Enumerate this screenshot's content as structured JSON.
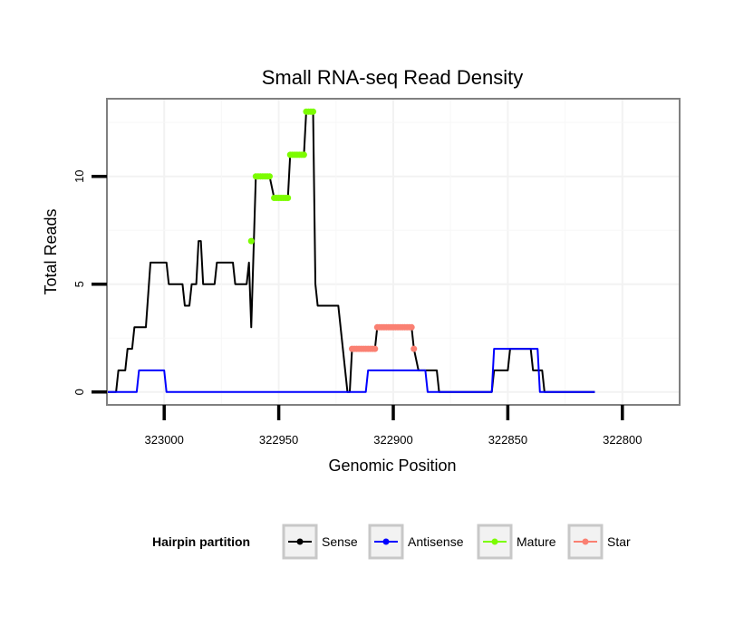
{
  "chart_data": {
    "type": "line",
    "title": "Small RNA-seq Read Density",
    "xlabel": "Genomic Position",
    "ylabel": "Total Reads",
    "xlim": [
      323025,
      322775
    ],
    "ylim": [
      -0.6,
      13.6
    ],
    "x_reversed": true,
    "grid": true,
    "legend_position": "bottom",
    "x_ticks": [
      323000,
      322950,
      322900,
      322850,
      322800
    ],
    "y_ticks": [
      0,
      5,
      10
    ],
    "legend": {
      "title": "Hairpin partition",
      "entries": [
        {
          "name": "Sense",
          "color": "#000000"
        },
        {
          "name": "Antisense",
          "color": "#0000ff"
        },
        {
          "name": "Mature",
          "color": "#7cfc00"
        },
        {
          "name": "Star",
          "color": "#fa8072"
        }
      ]
    },
    "series": [
      {
        "name": "Sense",
        "kind": "line",
        "color": "#000000",
        "points": [
          [
            323025,
            0
          ],
          [
            323021,
            0
          ],
          [
            323020,
            1
          ],
          [
            323017,
            1
          ],
          [
            323016,
            2
          ],
          [
            323014,
            2
          ],
          [
            323013,
            3
          ],
          [
            323008,
            3
          ],
          [
            323006,
            6
          ],
          [
            322999,
            6
          ],
          [
            322998,
            5
          ],
          [
            322992,
            5
          ],
          [
            322991,
            4
          ],
          [
            322989,
            4
          ],
          [
            322988,
            5
          ],
          [
            322986,
            5
          ],
          [
            322985,
            7
          ],
          [
            322984,
            7
          ],
          [
            322983,
            5
          ],
          [
            322978,
            5
          ],
          [
            322977,
            6
          ],
          [
            322970,
            6
          ],
          [
            322969,
            5
          ],
          [
            322964,
            5
          ],
          [
            322963,
            6
          ],
          [
            322962,
            3
          ],
          [
            322960,
            10
          ],
          [
            322954,
            10
          ],
          [
            322952,
            9
          ],
          [
            322946,
            9
          ],
          [
            322945,
            11
          ],
          [
            322939,
            11
          ],
          [
            322938,
            13
          ],
          [
            322935,
            13
          ],
          [
            322934,
            5
          ],
          [
            322933,
            4
          ],
          [
            322924,
            4
          ],
          [
            322922,
            2
          ],
          [
            322920,
            0
          ],
          [
            322919,
            0
          ],
          [
            322918,
            2
          ],
          [
            322908,
            2
          ],
          [
            322907,
            3
          ],
          [
            322892,
            3
          ],
          [
            322891,
            2
          ],
          [
            322889,
            1
          ],
          [
            322881,
            1
          ],
          [
            322880,
            0
          ],
          [
            322857,
            0
          ],
          [
            322856,
            1
          ],
          [
            322850,
            1
          ],
          [
            322849,
            2
          ],
          [
            322840,
            2
          ],
          [
            322839,
            1
          ],
          [
            322835,
            1
          ],
          [
            322834,
            0
          ],
          [
            322812,
            0
          ]
        ]
      },
      {
        "name": "Antisense",
        "kind": "line",
        "color": "#0000ff",
        "points": [
          [
            323025,
            0
          ],
          [
            323012,
            0
          ],
          [
            323011,
            1
          ],
          [
            323000,
            1
          ],
          [
            322999,
            0
          ],
          [
            322912,
            0
          ],
          [
            322911,
            1
          ],
          [
            322886,
            1
          ],
          [
            322885,
            0
          ],
          [
            322857,
            0
          ],
          [
            322856,
            2
          ],
          [
            322837,
            2
          ],
          [
            322836,
            0
          ],
          [
            322812,
            0
          ]
        ]
      },
      {
        "name": "Mature",
        "kind": "points",
        "color": "#7cfc00",
        "points": [
          [
            322962,
            7
          ],
          [
            322960,
            10
          ],
          [
            322959,
            10
          ],
          [
            322958,
            10
          ],
          [
            322957,
            10
          ],
          [
            322956,
            10
          ],
          [
            322955,
            10
          ],
          [
            322954,
            10
          ],
          [
            322952,
            9
          ],
          [
            322951,
            9
          ],
          [
            322950,
            9
          ],
          [
            322949,
            9
          ],
          [
            322948,
            9
          ],
          [
            322947,
            9
          ],
          [
            322946,
            9
          ],
          [
            322945,
            11
          ],
          [
            322944,
            11
          ],
          [
            322943,
            11
          ],
          [
            322942,
            11
          ],
          [
            322941,
            11
          ],
          [
            322940,
            11
          ],
          [
            322939,
            11
          ],
          [
            322938,
            13
          ],
          [
            322937,
            13
          ],
          [
            322936,
            13
          ],
          [
            322935,
            13
          ]
        ]
      },
      {
        "name": "Star",
        "kind": "points",
        "color": "#fa8072",
        "points": [
          [
            322918,
            2
          ],
          [
            322917,
            2
          ],
          [
            322916,
            2
          ],
          [
            322915,
            2
          ],
          [
            322914,
            2
          ],
          [
            322913,
            2
          ],
          [
            322912,
            2
          ],
          [
            322911,
            2
          ],
          [
            322910,
            2
          ],
          [
            322909,
            2
          ],
          [
            322908,
            2
          ],
          [
            322907,
            3
          ],
          [
            322906,
            3
          ],
          [
            322905,
            3
          ],
          [
            322904,
            3
          ],
          [
            322903,
            3
          ],
          [
            322902,
            3
          ],
          [
            322901,
            3
          ],
          [
            322900,
            3
          ],
          [
            322899,
            3
          ],
          [
            322898,
            3
          ],
          [
            322897,
            3
          ],
          [
            322896,
            3
          ],
          [
            322895,
            3
          ],
          [
            322894,
            3
          ],
          [
            322893,
            3
          ],
          [
            322892,
            3
          ],
          [
            322891,
            2
          ]
        ]
      }
    ]
  }
}
